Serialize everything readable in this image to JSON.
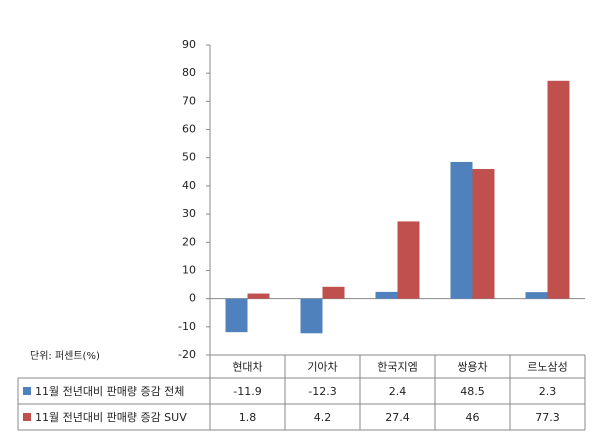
{
  "chart_data": {
    "type": "bar",
    "unit_note": "단위: 퍼센트(%)",
    "categories": [
      "현대차",
      "기아차",
      "한국지엠",
      "쌍용차",
      "르노삼성"
    ],
    "series": [
      {
        "name": "11월 전년대비 판매량 증감 전체",
        "color": "#4f81bd",
        "values": [
          -11.9,
          -12.3,
          2.4,
          48.5,
          2.3
        ]
      },
      {
        "name": "11월 전년대비 판매량 증감 SUV",
        "color": "#c0504d",
        "values": [
          1.8,
          4.2,
          27.4,
          46,
          77.3
        ]
      }
    ],
    "ylim": [
      -20,
      90
    ],
    "yticks": [
      -20,
      -10,
      0,
      10,
      20,
      30,
      40,
      50,
      60,
      70,
      80,
      90
    ],
    "data_table": true
  }
}
